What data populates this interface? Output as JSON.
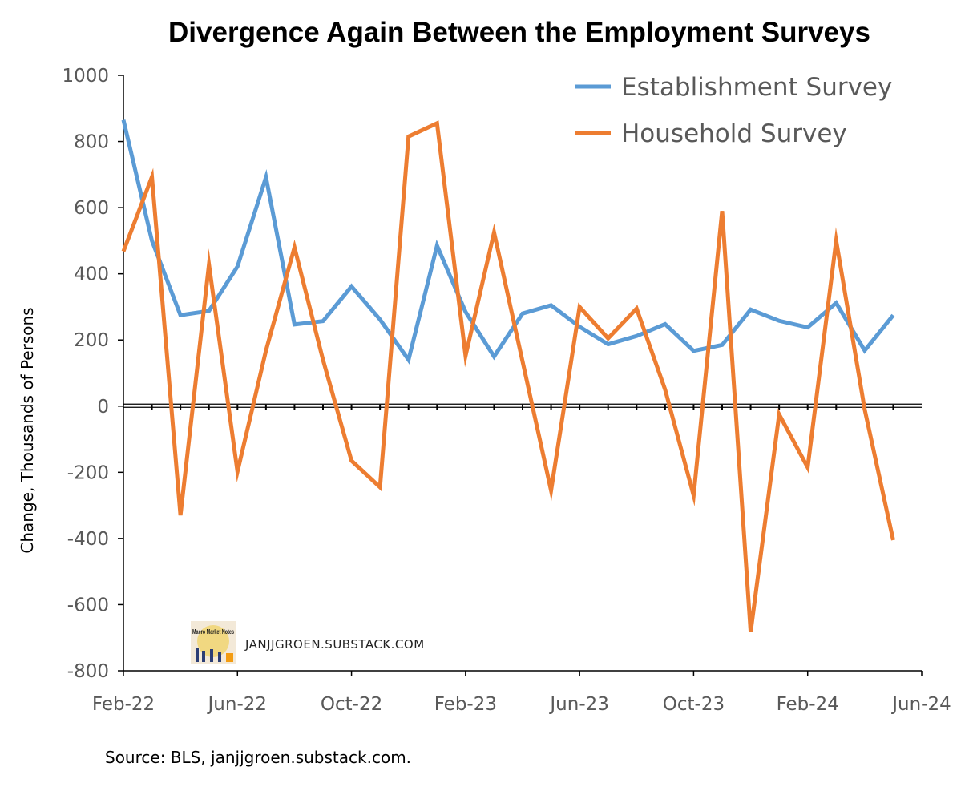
{
  "chart_data": {
    "type": "line",
    "title": "Divergence Again Between the Employment Surveys",
    "ylabel": "Change, Thousands of Persons",
    "xlabel": "",
    "ylim": [
      -800,
      1000
    ],
    "yticks": [
      1000,
      800,
      600,
      400,
      200,
      0,
      -200,
      -400,
      -600,
      -800
    ],
    "xtick_labels": [
      "Feb-22",
      "Jun-22",
      "Oct-22",
      "Feb-23",
      "Jun-23",
      "Oct-23",
      "Feb-24",
      "Jun-24"
    ],
    "x": [
      "Feb-22",
      "Mar-22",
      "Apr-22",
      "May-22",
      "Jun-22",
      "Jul-22",
      "Aug-22",
      "Sep-22",
      "Oct-22",
      "Nov-22",
      "Dec-22",
      "Jan-23",
      "Feb-23",
      "Mar-23",
      "Apr-23",
      "May-23",
      "Jun-23",
      "Jul-23",
      "Aug-23",
      "Sep-23",
      "Oct-23",
      "Nov-23",
      "Dec-23",
      "Jan-24",
      "Feb-24",
      "Mar-24",
      "Apr-24",
      "May-24"
    ],
    "series": [
      {
        "name": "Establishment Survey",
        "color": "#5b9bd5",
        "values": [
          865,
          500,
          275,
          288,
          422,
          692,
          247,
          257,
          362,
          262,
          140,
          485,
          285,
          150,
          280,
          305,
          240,
          187,
          212,
          248,
          167,
          185,
          292,
          258,
          238,
          312,
          168,
          275
        ]
      },
      {
        "name": "Household Survey",
        "color": "#ed7d31",
        "values": [
          468,
          693,
          -330,
          428,
          -198,
          168,
          480,
          140,
          -165,
          -245,
          815,
          855,
          152,
          525,
          135,
          -255,
          300,
          205,
          295,
          50,
          -270,
          590,
          -683,
          -25,
          -185,
          500,
          -10,
          -405
        ]
      }
    ],
    "legend_position": "top-right",
    "grid": false
  },
  "watermark": {
    "text": "JANJJGROEN.SUBSTACK.COM",
    "logo_text": "Macro Market Notes"
  },
  "source": "Source: BLS, janjjgroen.substack.com."
}
